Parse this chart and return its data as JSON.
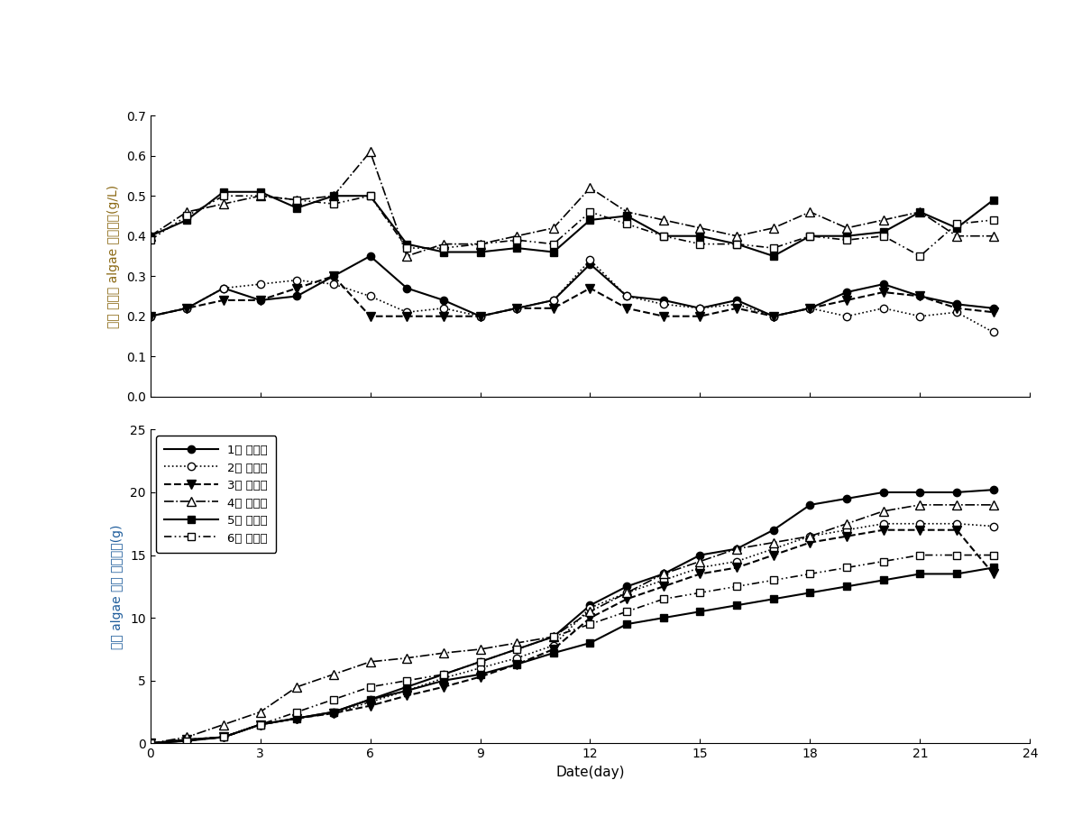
{
  "x": [
    0,
    1,
    2,
    3,
    4,
    5,
    6,
    7,
    8,
    9,
    10,
    11,
    12,
    13,
    14,
    15,
    16,
    17,
    18,
    19,
    20,
    21,
    22,
    23
  ],
  "upper_s1": [
    0.2,
    0.22,
    0.27,
    0.24,
    0.25,
    0.3,
    0.35,
    0.27,
    0.24,
    0.2,
    0.22,
    0.24,
    0.33,
    0.25,
    0.24,
    0.22,
    0.24,
    0.2,
    0.22,
    0.26,
    0.28,
    0.25,
    0.23,
    0.22
  ],
  "upper_s2": [
    0.2,
    0.22,
    0.27,
    0.28,
    0.29,
    0.28,
    0.25,
    0.21,
    0.22,
    0.2,
    0.22,
    0.24,
    0.34,
    0.25,
    0.23,
    0.22,
    0.23,
    0.2,
    0.22,
    0.2,
    0.22,
    0.2,
    0.21,
    0.16
  ],
  "upper_s3": [
    0.2,
    0.22,
    0.24,
    0.24,
    0.27,
    0.3,
    0.2,
    0.2,
    0.2,
    0.2,
    0.22,
    0.22,
    0.27,
    0.22,
    0.2,
    0.2,
    0.22,
    0.2,
    0.22,
    0.24,
    0.26,
    0.25,
    0.22,
    0.21
  ],
  "upper_s4": [
    0.4,
    0.46,
    0.48,
    0.5,
    0.49,
    0.5,
    0.61,
    0.35,
    0.38,
    0.38,
    0.4,
    0.42,
    0.52,
    0.46,
    0.44,
    0.42,
    0.4,
    0.42,
    0.46,
    0.42,
    0.44,
    0.46,
    0.4,
    0.4
  ],
  "upper_s5": [
    0.4,
    0.44,
    0.51,
    0.51,
    0.47,
    0.5,
    0.5,
    0.38,
    0.36,
    0.36,
    0.37,
    0.36,
    0.44,
    0.45,
    0.4,
    0.4,
    0.38,
    0.35,
    0.4,
    0.4,
    0.41,
    0.46,
    0.42,
    0.49
  ],
  "upper_s6": [
    0.39,
    0.45,
    0.5,
    0.5,
    0.49,
    0.48,
    0.5,
    0.37,
    0.37,
    0.38,
    0.39,
    0.38,
    0.46,
    0.43,
    0.4,
    0.38,
    0.38,
    0.37,
    0.4,
    0.39,
    0.4,
    0.35,
    0.43,
    0.44
  ],
  "lower_s1": [
    0.0,
    0.3,
    0.5,
    1.5,
    2.0,
    2.5,
    3.5,
    4.5,
    5.5,
    6.5,
    7.5,
    8.5,
    11.0,
    12.5,
    13.5,
    15.0,
    15.5,
    17.0,
    19.0,
    19.5,
    20.0,
    20.0,
    20.0,
    20.2
  ],
  "lower_s2": [
    0.0,
    0.3,
    0.5,
    1.5,
    2.0,
    2.4,
    3.3,
    4.2,
    5.2,
    6.0,
    6.8,
    7.8,
    10.8,
    12.0,
    13.0,
    14.0,
    14.5,
    15.5,
    16.5,
    17.0,
    17.5,
    17.5,
    17.5,
    17.3
  ],
  "lower_s3": [
    0.0,
    0.3,
    0.5,
    1.5,
    2.0,
    2.4,
    3.0,
    3.8,
    4.5,
    5.3,
    6.3,
    7.5,
    10.0,
    11.5,
    12.5,
    13.5,
    14.0,
    15.0,
    16.0,
    16.5,
    17.0,
    17.0,
    17.0,
    13.5
  ],
  "lower_s4": [
    0.0,
    0.5,
    1.5,
    2.5,
    4.5,
    5.5,
    6.5,
    6.8,
    7.2,
    7.5,
    8.0,
    8.5,
    10.5,
    12.0,
    13.5,
    14.5,
    15.5,
    16.0,
    16.5,
    17.5,
    18.5,
    19.0,
    19.0,
    19.0
  ],
  "lower_s5": [
    0.0,
    0.2,
    0.5,
    1.5,
    2.0,
    2.5,
    3.5,
    4.2,
    5.0,
    5.5,
    6.3,
    7.2,
    8.0,
    9.5,
    10.0,
    10.5,
    11.0,
    11.5,
    12.0,
    12.5,
    13.0,
    13.5,
    13.5,
    14.0
  ],
  "lower_s6": [
    0.0,
    0.2,
    0.5,
    1.5,
    2.5,
    3.5,
    4.5,
    5.0,
    5.5,
    6.5,
    7.5,
    8.5,
    9.5,
    10.5,
    11.5,
    12.0,
    12.5,
    13.0,
    13.5,
    14.0,
    14.5,
    15.0,
    15.0,
    15.0
  ],
  "legend_labels": [
    "1번 배양조",
    "2번 배양조",
    "3번 배양조",
    "4번 배양조",
    "5번 배양조",
    "6번 배양조"
  ],
  "ylabel_upper": "단위 부피당 algae 건조중량(g/L)",
  "ylabel_lower": "수거 algae 누적 건조중량(g)",
  "xlabel": "Date(day)",
  "upper_ylim": [
    0.0,
    0.7
  ],
  "lower_ylim": [
    0,
    25
  ],
  "upper_yticks": [
    0.0,
    0.1,
    0.2,
    0.3,
    0.4,
    0.5,
    0.6,
    0.7
  ],
  "lower_yticks": [
    0,
    5,
    10,
    15,
    20,
    25
  ],
  "xticks": [
    0,
    3,
    6,
    9,
    12,
    15,
    18,
    21,
    24
  ],
  "ylabel_upper_color": "#8B6914",
  "ylabel_lower_color": "#1E5C9B"
}
